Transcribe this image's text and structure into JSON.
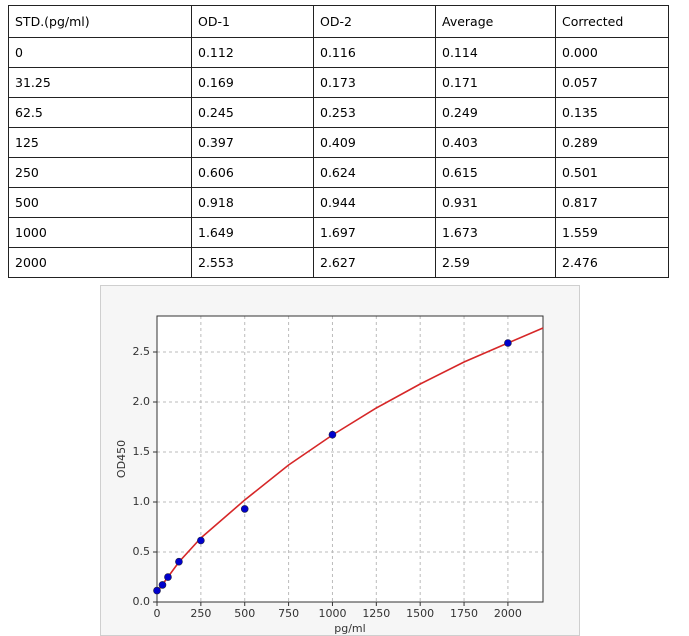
{
  "table": {
    "header": [
      "STD.(pg/ml)",
      "OD-1",
      "OD-2",
      "Average",
      "Corrected"
    ],
    "rows": [
      [
        "0",
        "0.112",
        "0.116",
        "0.114",
        "0.000"
      ],
      [
        "31.25",
        "0.169",
        "0.173",
        "0.171",
        "0.057"
      ],
      [
        "62.5",
        "0.245",
        "0.253",
        "0.249",
        "0.135"
      ],
      [
        "125",
        "0.397",
        "0.409",
        "0.403",
        "0.289"
      ],
      [
        "250",
        "0.606",
        "0.624",
        "0.615",
        "0.501"
      ],
      [
        "500",
        "0.918",
        "0.944",
        "0.931",
        "0.817"
      ],
      [
        "1000",
        "1.649",
        "1.697",
        "1.673",
        "1.559"
      ],
      [
        "2000",
        "2.553",
        "2.627",
        "2.59",
        "2.476"
      ]
    ]
  },
  "chart_data": {
    "type": "scatter",
    "x_label": "pg/ml",
    "y_label": "OD450",
    "xlim": [
      0,
      2200
    ],
    "ylim": [
      0,
      2.86
    ],
    "xticks": [
      0,
      250,
      500,
      750,
      1000,
      1250,
      1500,
      1750,
      2000
    ],
    "yticks": [
      {
        "value": 0,
        "label": "0.0"
      },
      0.5,
      {
        "value": 1,
        "label": "1.0"
      },
      1.5,
      {
        "value": 2,
        "label": "2.0"
      },
      2.5
    ],
    "grid": true,
    "series": [
      {
        "type": "scatter",
        "color": "#0000cc",
        "x": [
          0,
          31.25,
          62.5,
          125,
          250,
          500,
          1000,
          2000
        ],
        "values": [
          0.114,
          0.171,
          0.249,
          0.403,
          0.615,
          0.931,
          1.673,
          2.59
        ]
      },
      {
        "type": "line",
        "color": "#d62728",
        "x": [
          0,
          125,
          250,
          500,
          750,
          1000,
          1250,
          1500,
          1750,
          2000,
          2200
        ],
        "values": [
          0.1,
          0.4,
          0.64,
          1.02,
          1.37,
          1.67,
          1.94,
          2.18,
          2.4,
          2.59,
          2.74
        ]
      }
    ]
  }
}
